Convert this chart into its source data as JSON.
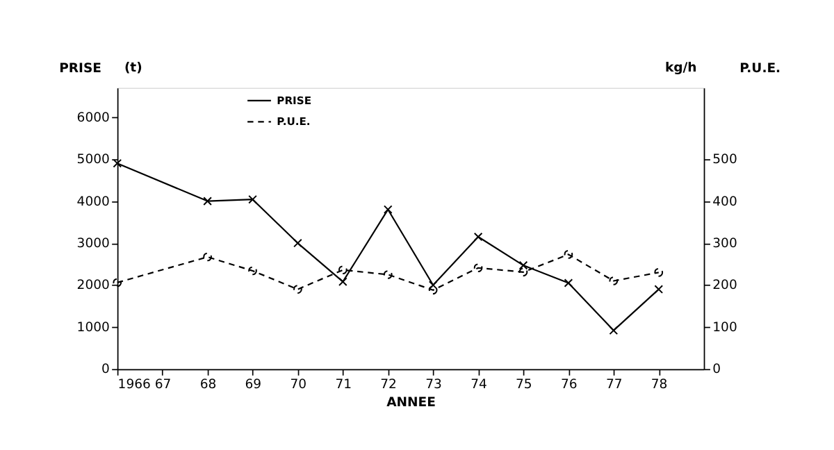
{
  "chart_data": {
    "type": "line",
    "ylabel": "PRISE",
    "y2label": "P.U.E.",
    "xlabel": "ANNEE",
    "annotations": [
      "(t)",
      "kg/h"
    ],
    "x": [
      1966,
      1968,
      1969,
      1970,
      1971,
      1972,
      1973,
      1974,
      1975,
      1976,
      1977,
      1978
    ],
    "series": [
      {
        "name": "PRISE",
        "color": "#000000",
        "marker": "cross",
        "line_style": "solid",
        "values": [
          4900,
          4000,
          4040,
          3000,
          2080,
          3800,
          2000,
          3150,
          2470,
          2050,
          920,
          1900
        ]
      },
      {
        "name": "P.U.E.",
        "color": "#000000",
        "marker": "circle",
        "line_style": "dashed",
        "axis": "y2",
        "values": [
          206,
          267,
          234,
          190,
          236,
          225,
          188,
          241,
          231,
          273,
          210,
          230
        ]
      }
    ],
    "xlim": [
      1966,
      1979
    ],
    "xticks": [
      1966,
      {
        "value": 1967,
        "label": "67"
      },
      {
        "value": 1968,
        "label": "68"
      },
      {
        "value": 1969,
        "label": "69"
      },
      {
        "value": 1970,
        "label": "70"
      },
      {
        "value": 1971,
        "label": "71"
      },
      {
        "value": 1972,
        "label": "72"
      },
      {
        "value": 1973,
        "label": "73"
      },
      {
        "value": 1974,
        "label": "74"
      },
      {
        "value": 1975,
        "label": "75"
      },
      {
        "value": 1976,
        "label": "76"
      },
      {
        "value": 1977,
        "label": "77"
      },
      {
        "value": 1978,
        "label": "78"
      }
    ],
    "ylim": [
      0,
      6700
    ],
    "yticks": [
      0,
      1000,
      2000,
      3000,
      4000,
      5000,
      6000
    ],
    "y2lim": [
      0,
      670
    ],
    "y2ticks": [
      0,
      100,
      200,
      300,
      400,
      500
    ],
    "grid": false,
    "legend": "top left"
  }
}
